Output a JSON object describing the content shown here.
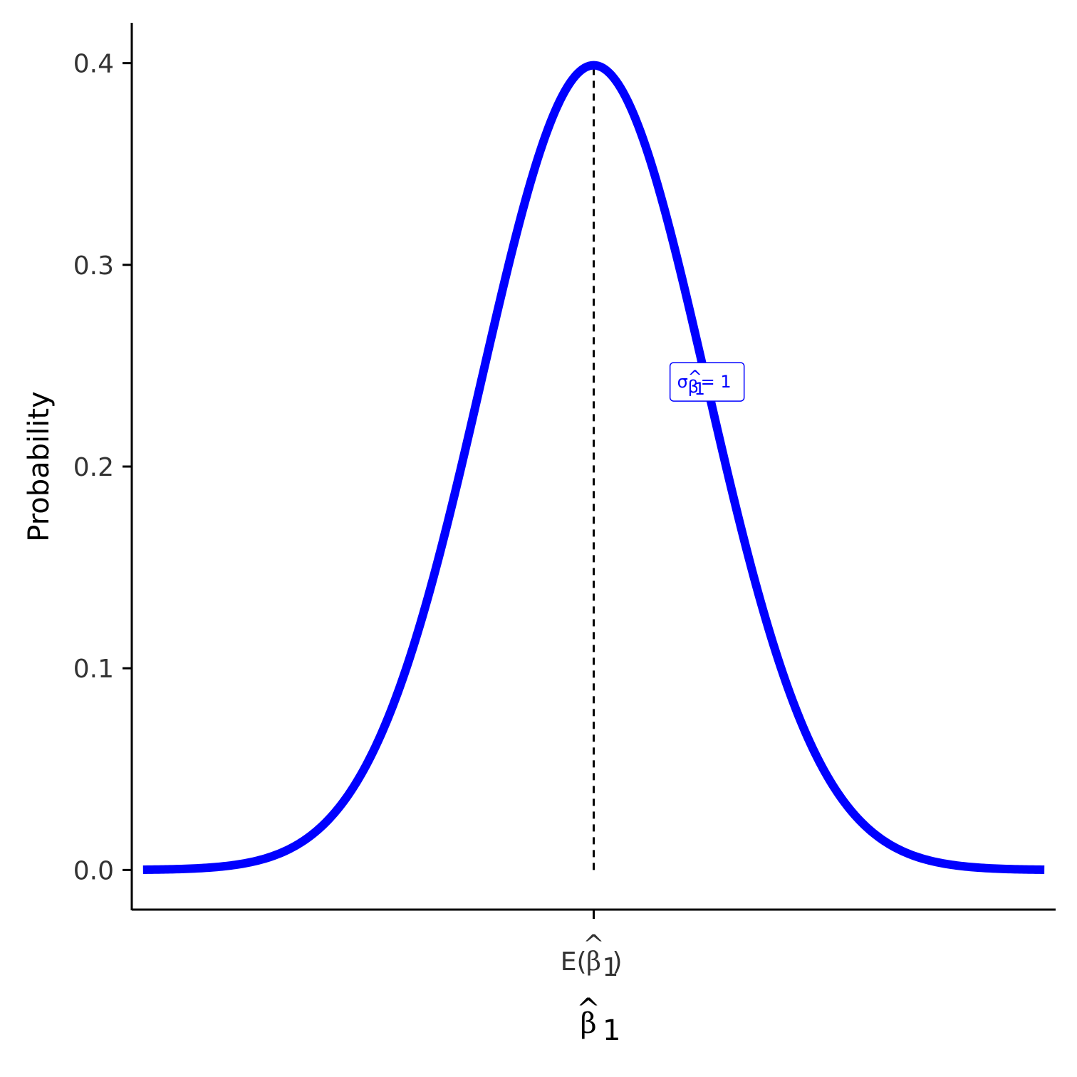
{
  "chart_data": {
    "type": "line",
    "title": "",
    "xlabel": {
      "base": "β",
      "hat": "^",
      "subscript": "1"
    },
    "ylabel": "Probability",
    "x_range": [
      -4.1,
      4.1
    ],
    "ylim": [
      -0.02,
      0.42
    ],
    "y_ticks": [
      0.0,
      0.1,
      0.2,
      0.3,
      0.4
    ],
    "y_tick_labels": [
      "0.0",
      "0.1",
      "0.2",
      "0.3",
      "0.4"
    ],
    "x_ticks": [
      {
        "x": 0,
        "prefix": "E(",
        "base": "β",
        "hat": "^",
        "subscript": "1",
        "suffix": ")"
      }
    ],
    "series": [
      {
        "color": "#0000ff",
        "distribution": "normal",
        "mean": 0,
        "sd": 1,
        "x_min": -4,
        "x_max": 4,
        "points": [
          [
            -4.0,
            0.0001
          ],
          [
            -3.75,
            0.0004
          ],
          [
            -3.5,
            0.0009
          ],
          [
            -3.25,
            0.002
          ],
          [
            -3.0,
            0.0044
          ],
          [
            -2.75,
            0.0091
          ],
          [
            -2.5,
            0.0175
          ],
          [
            -2.25,
            0.0317
          ],
          [
            -2.0,
            0.054
          ],
          [
            -1.75,
            0.0863
          ],
          [
            -1.5,
            0.1295
          ],
          [
            -1.25,
            0.1826
          ],
          [
            -1.0,
            0.242
          ],
          [
            -0.75,
            0.3011
          ],
          [
            -0.5,
            0.3521
          ],
          [
            -0.25,
            0.3867
          ],
          [
            0.0,
            0.3989
          ],
          [
            0.25,
            0.3867
          ],
          [
            0.5,
            0.3521
          ],
          [
            0.75,
            0.3011
          ],
          [
            1.0,
            0.242
          ],
          [
            1.25,
            0.1826
          ],
          [
            1.5,
            0.1295
          ],
          [
            1.75,
            0.0863
          ],
          [
            2.0,
            0.054
          ],
          [
            2.25,
            0.0317
          ],
          [
            2.5,
            0.0175
          ],
          [
            2.75,
            0.0091
          ],
          [
            3.0,
            0.0044
          ],
          [
            3.25,
            0.002
          ],
          [
            3.5,
            0.0009
          ],
          [
            3.75,
            0.0004
          ],
          [
            4.0,
            0.0001
          ]
        ]
      }
    ],
    "reference_line": {
      "x": 0,
      "y_from": 0,
      "y_to": 0.3989,
      "style": "dashed",
      "color": "#000000"
    },
    "annotation": {
      "x": 1.0,
      "y": 0.242,
      "symbol": "σ",
      "sub_base": "β",
      "sub_hat": "^",
      "sub_subscript": "1",
      "rest": " = 1",
      "color": "#0000ff"
    },
    "grid": false,
    "legend": "none"
  }
}
